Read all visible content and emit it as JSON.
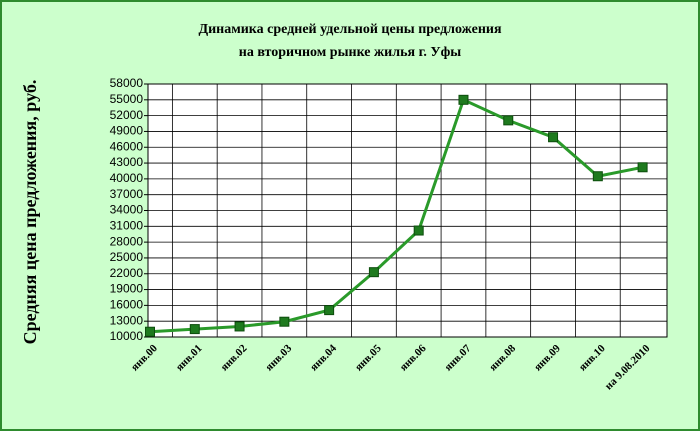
{
  "chart_data": {
    "type": "line",
    "title": [
      "Динамика средней удельной цены предложения",
      "на вторичном рынке жилья г. Уфы"
    ],
    "y_label": "Средняя цена предложения, руб.",
    "categories": [
      "янв.00",
      "янв.01",
      "янв.02",
      "янв.03",
      "янв.04",
      "янв.05",
      "янв.06",
      "янв.07",
      "янв.08",
      "янв.09",
      "янв.10",
      "на 9.08.2010"
    ],
    "series": [
      {
        "name": "Средняя цена предложения",
        "color": "#1e7a1e",
        "values": [
          11000,
          11500,
          12000,
          12900,
          15100,
          22300,
          30200,
          55000,
          51100,
          47900,
          40500,
          42200
        ]
      }
    ],
    "ylim": [
      10000,
      58000
    ],
    "yticks": [
      10000,
      13000,
      16000,
      19000,
      22000,
      25000,
      28000,
      31000,
      34000,
      37000,
      40000,
      43000,
      46000,
      49000,
      52000,
      55000,
      58000
    ],
    "grid": true
  }
}
